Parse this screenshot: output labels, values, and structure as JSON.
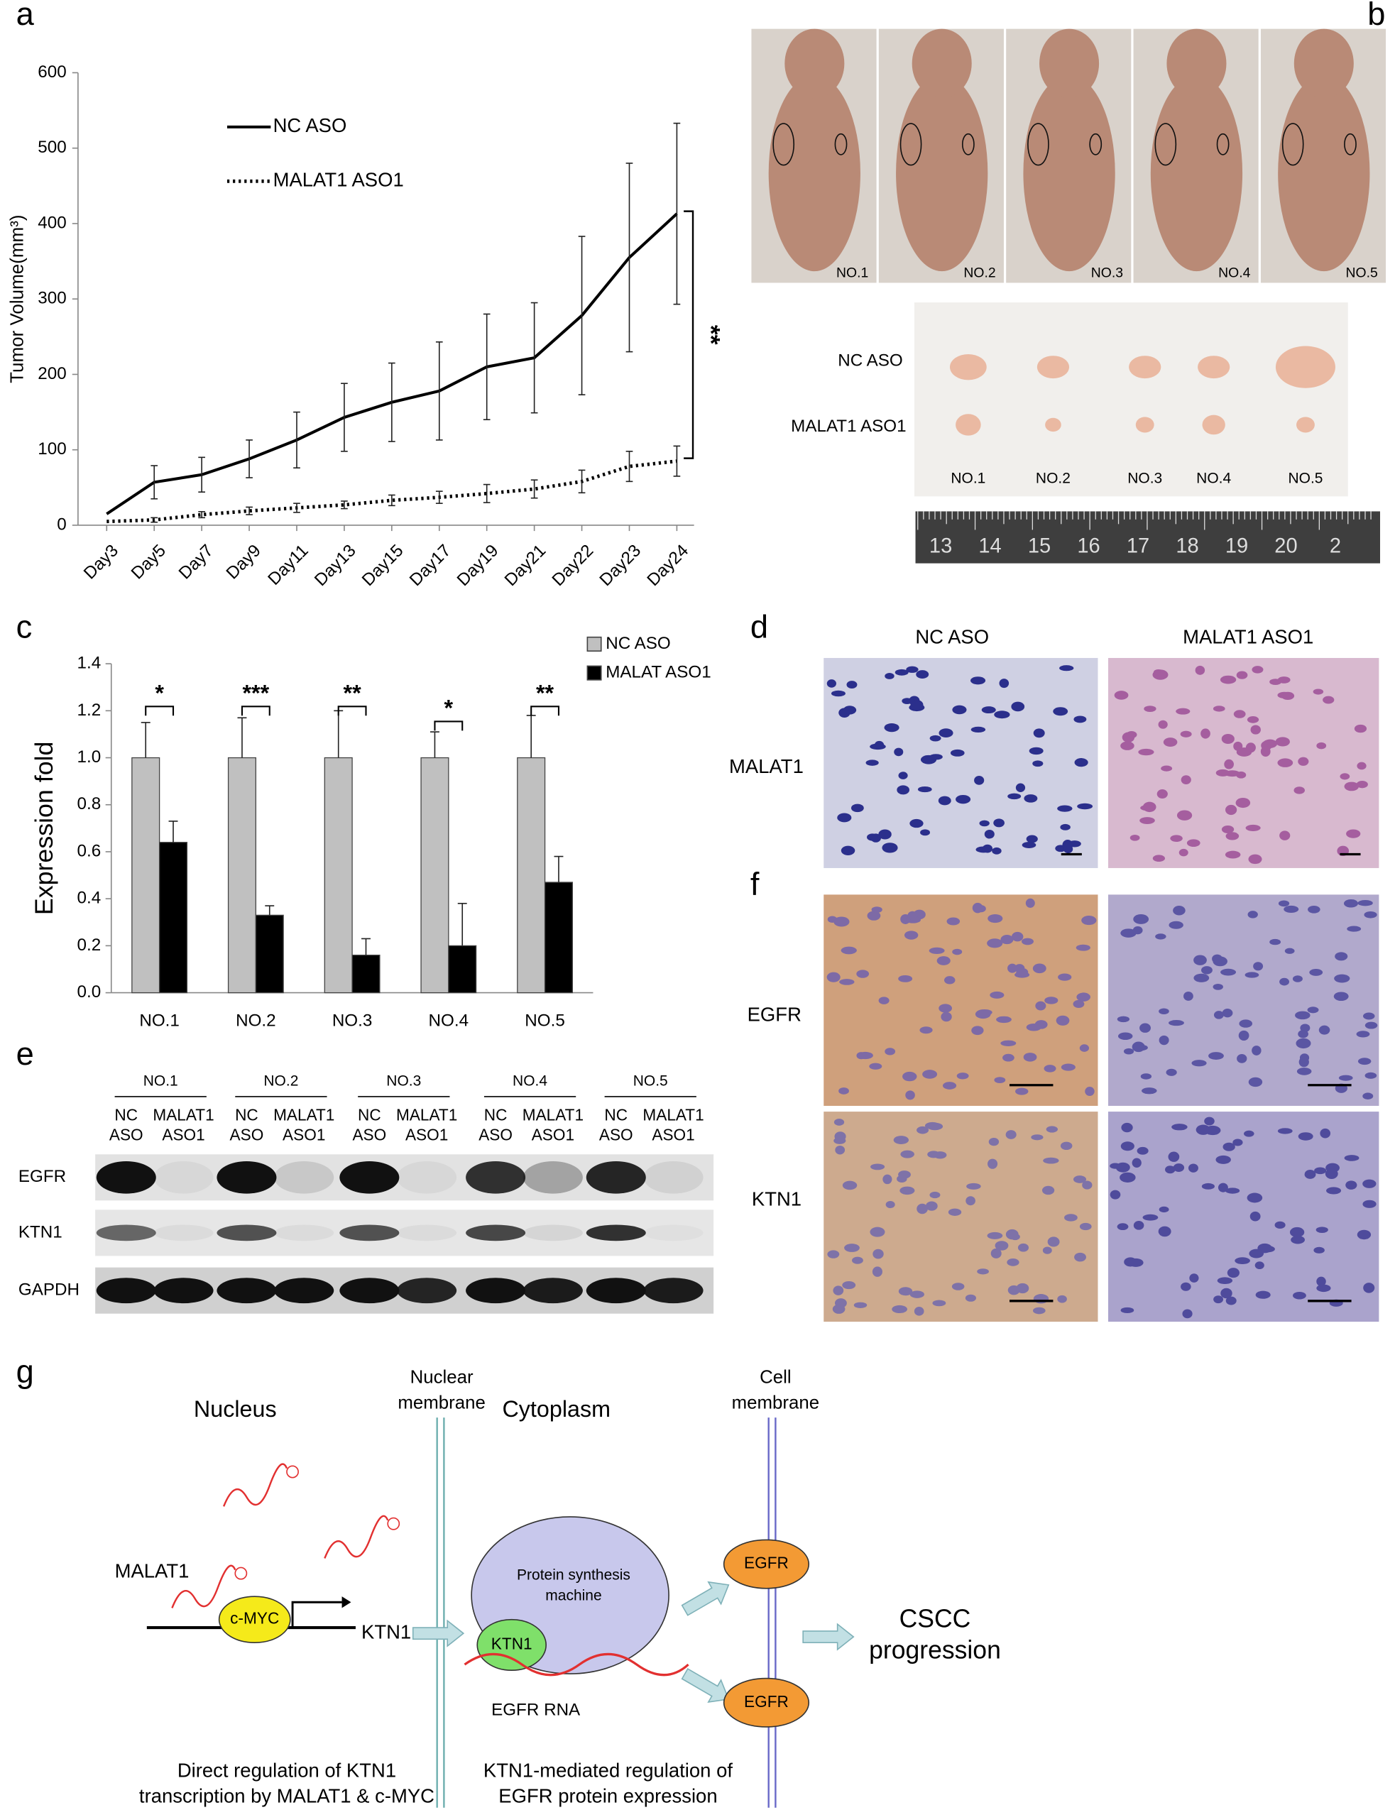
{
  "panel_labels": [
    "a",
    "b",
    "c",
    "d",
    "e",
    "f",
    "g"
  ],
  "chart_data": [
    {
      "type": "line",
      "y_label": "Tumor  Volume(mm³)",
      "categories": [
        "Day3",
        "Day5",
        "Day7",
        "Day9",
        "Day11",
        "Day13",
        "Day15",
        "Day17",
        "Day19",
        "Day21",
        "Day22",
        "Day23",
        "Day24"
      ],
      "ylim": [
        0,
        600
      ],
      "yticks": [
        0,
        100,
        200,
        300,
        400,
        500,
        600
      ],
      "legend": "upper left",
      "annotation": "**",
      "series": [
        {
          "name": "NC ASO",
          "color": "#000000",
          "line_style": "solid",
          "values": [
            15,
            57,
            67,
            88,
            113,
            143,
            163,
            178,
            210,
            222,
            278,
            355,
            413
          ],
          "errors": [
            null,
            22,
            23,
            25,
            37,
            45,
            52,
            65,
            70,
            73,
            105,
            125,
            120
          ]
        },
        {
          "name": "MALAT1 ASO1",
          "color": "#000000",
          "line_style": "dotted",
          "values": [
            5,
            7,
            14,
            19,
            23,
            27,
            33,
            37,
            42,
            48,
            58,
            78,
            85
          ],
          "errors": [
            null,
            3,
            4,
            5,
            6,
            5,
            7,
            8,
            12,
            12,
            15,
            20,
            20
          ]
        }
      ]
    },
    {
      "type": "bar",
      "y_label": "Expression fold",
      "categories": [
        "NO.1",
        "NO.2",
        "NO.3",
        "NO.4",
        "NO.5"
      ],
      "ylim": [
        0,
        1.4
      ],
      "yticks": [
        {
          "value": 0,
          "label": "0.0"
        },
        0.2,
        0.4,
        0.6,
        0.8,
        {
          "value": 1,
          "label": "1.0"
        },
        1.2,
        1.4
      ],
      "legend": "upper right",
      "significance": [
        "*",
        "***",
        "**",
        "*",
        "**"
      ],
      "series": [
        {
          "name": "NC ASO",
          "color": "#c0c0c0",
          "values": [
            1,
            1,
            1,
            1,
            1
          ],
          "errors": [
            0.15,
            0.17,
            0.2,
            0.11,
            0.18
          ]
        },
        {
          "name": "MALAT ASO1",
          "color": "#000000",
          "values": [
            0.64,
            0.33,
            0.16,
            0.2,
            0.47
          ],
          "errors": [
            0.09,
            0.04,
            0.07,
            0.18,
            0.11
          ]
        }
      ]
    }
  ],
  "photos_b": {
    "mouse_labels": [
      "NO.1",
      "NO.2",
      "NO.3",
      "NO.4",
      "NO.5"
    ],
    "tumor_rows": [
      "NC ASO",
      "MALAT1 ASO1"
    ],
    "tumor_labels": [
      "NO.1",
      "NO.2",
      "NO.3",
      "NO.4",
      "NO.5"
    ],
    "ruler_labels": [
      "13",
      "14",
      "15",
      "16",
      "17",
      "18",
      "19",
      "20",
      "2"
    ]
  },
  "ish_d": {
    "columns": [
      "NC ASO",
      "MALAT1  ASO1"
    ],
    "row": "MALAT1"
  },
  "blot_e": {
    "samples": [
      "NO.1",
      "NO.2",
      "NO.3",
      "NO.4",
      "NO.5"
    ],
    "lanes": [
      [
        "NC",
        "ASO"
      ],
      [
        "MALAT1",
        "ASO1"
      ]
    ],
    "rows": [
      "EGFR",
      "KTN1",
      "GAPDH"
    ]
  },
  "ihc_f": {
    "rows": [
      "EGFR",
      "KTN1"
    ]
  },
  "diagram_g": {
    "nucleus": "Nucleus",
    "nuclear_membrane": [
      "Nuclear",
      "membrane"
    ],
    "cytoplasm": "Cytoplasm",
    "cell_membrane": [
      "Cell",
      "membrane"
    ],
    "malat1": "MALAT1",
    "cmyc": "c-MYC",
    "ktn1_gene": "KTN1",
    "machine": [
      "Protein synthesis",
      "machine"
    ],
    "ktn1_protein": "KTN1",
    "egfr_rna": "EGFR RNA",
    "egfr": [
      "EGFR",
      "EGFR"
    ],
    "outcome": [
      "CSCC",
      "progression"
    ],
    "caption_left": [
      "Direct regulation of KTN1",
      "transcription by MALAT1 & c-MYC"
    ],
    "caption_right": [
      "KTN1-mediated regulation of",
      "EGFR protein expression"
    ]
  }
}
